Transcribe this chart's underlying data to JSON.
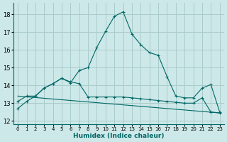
{
  "xlabel": "Humidex (Indice chaleur)",
  "bg_color": "#cde8e8",
  "grid_color": "#aacccc",
  "line_color": "#006666",
  "xlim": [
    -0.5,
    23.5
  ],
  "ylim": [
    11.8,
    18.65
  ],
  "yticks": [
    12,
    13,
    14,
    15,
    16,
    17,
    18
  ],
  "xticks": [
    0,
    1,
    2,
    3,
    4,
    5,
    6,
    7,
    8,
    9,
    10,
    11,
    12,
    13,
    14,
    15,
    16,
    17,
    18,
    19,
    20,
    21,
    22,
    23
  ],
  "line1_x": [
    0,
    1,
    2,
    3,
    4,
    5,
    6,
    7,
    8,
    9,
    10,
    11,
    12,
    13,
    14,
    15,
    16,
    17,
    18,
    19,
    20,
    21,
    22,
    23
  ],
  "line1_y": [
    12.7,
    13.1,
    13.4,
    13.85,
    14.1,
    14.4,
    14.15,
    14.85,
    15.0,
    16.15,
    17.05,
    17.9,
    18.15,
    16.9,
    16.3,
    15.85,
    15.7,
    14.5,
    13.4,
    13.3,
    13.3,
    13.85,
    14.05,
    12.5
  ],
  "line2_x": [
    0,
    1,
    2,
    3,
    4,
    5,
    6,
    7,
    8,
    9,
    10,
    11,
    12,
    13,
    14,
    15,
    16,
    17,
    18,
    19,
    20,
    21,
    22,
    23
  ],
  "line2_y": [
    13.1,
    13.4,
    13.4,
    13.85,
    14.1,
    14.4,
    14.2,
    14.1,
    13.35,
    13.35,
    13.35,
    13.35,
    13.35,
    13.3,
    13.25,
    13.2,
    13.15,
    13.1,
    13.05,
    13.0,
    13.0,
    13.3,
    12.5,
    12.45
  ],
  "line3_x": [
    0,
    23
  ],
  "line3_y": [
    13.4,
    12.45
  ]
}
